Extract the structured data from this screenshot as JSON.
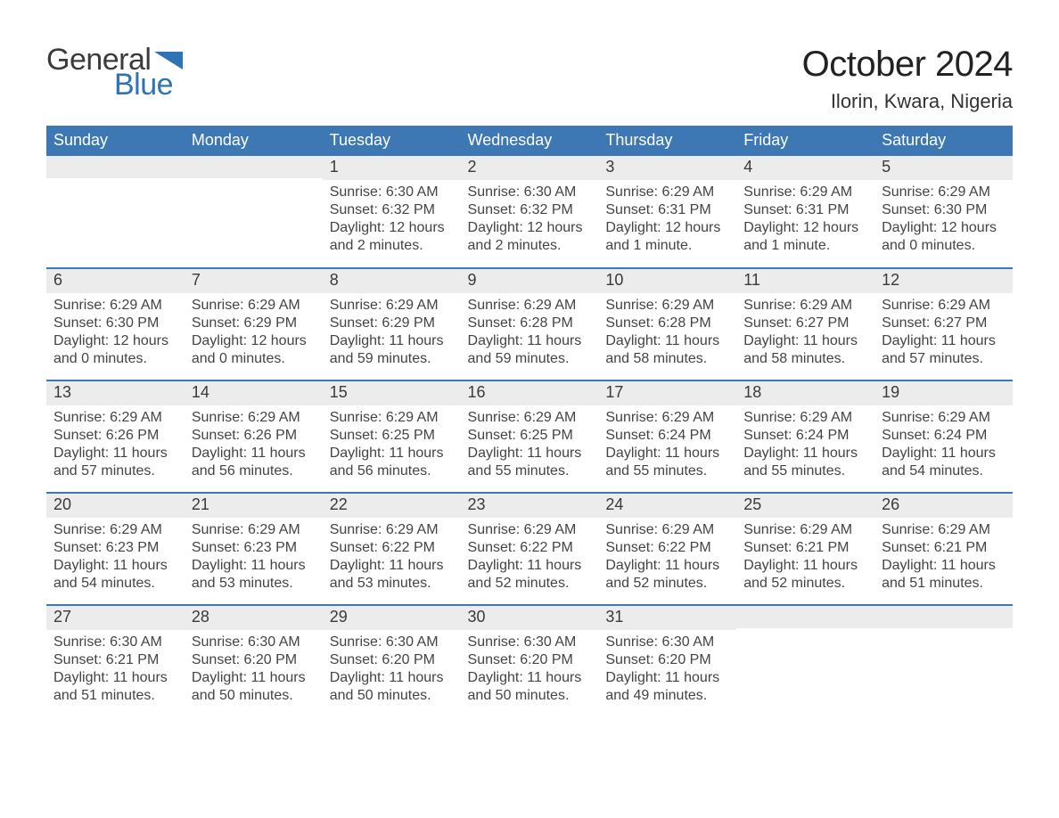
{
  "logo": {
    "word1": "General",
    "word2": "Blue"
  },
  "title": "October 2024",
  "location": "Ilorin, Kwara, Nigeria",
  "weekdays": [
    "Sunday",
    "Monday",
    "Tuesday",
    "Wednesday",
    "Thursday",
    "Friday",
    "Saturday"
  ],
  "labels": {
    "sunrise": "Sunrise:",
    "sunset": "Sunset:",
    "daylight": "Daylight:"
  },
  "colors": {
    "header_blue": "#3d78b4",
    "logo_blue": "#2f73b6",
    "row_grey": "#ececec",
    "rule_blue": "#3d78b4",
    "text": "#333333",
    "background": "#ffffff"
  },
  "fonts": {
    "family": "Arial",
    "title_pt": 40,
    "location_pt": 22,
    "weekday_pt": 18,
    "daynum_pt": 18,
    "body_pt": 16
  },
  "weeks": [
    [
      {
        "blank": true
      },
      {
        "blank": true
      },
      {
        "date": 1,
        "sunrise": "6:30 AM",
        "sunset": "6:32 PM",
        "daylight": "12 hours and 2 minutes."
      },
      {
        "date": 2,
        "sunrise": "6:30 AM",
        "sunset": "6:32 PM",
        "daylight": "12 hours and 2 minutes."
      },
      {
        "date": 3,
        "sunrise": "6:29 AM",
        "sunset": "6:31 PM",
        "daylight": "12 hours and 1 minute."
      },
      {
        "date": 4,
        "sunrise": "6:29 AM",
        "sunset": "6:31 PM",
        "daylight": "12 hours and 1 minute."
      },
      {
        "date": 5,
        "sunrise": "6:29 AM",
        "sunset": "6:30 PM",
        "daylight": "12 hours and 0 minutes."
      }
    ],
    [
      {
        "date": 6,
        "sunrise": "6:29 AM",
        "sunset": "6:30 PM",
        "daylight": "12 hours and 0 minutes."
      },
      {
        "date": 7,
        "sunrise": "6:29 AM",
        "sunset": "6:29 PM",
        "daylight": "12 hours and 0 minutes."
      },
      {
        "date": 8,
        "sunrise": "6:29 AM",
        "sunset": "6:29 PM",
        "daylight": "11 hours and 59 minutes."
      },
      {
        "date": 9,
        "sunrise": "6:29 AM",
        "sunset": "6:28 PM",
        "daylight": "11 hours and 59 minutes."
      },
      {
        "date": 10,
        "sunrise": "6:29 AM",
        "sunset": "6:28 PM",
        "daylight": "11 hours and 58 minutes."
      },
      {
        "date": 11,
        "sunrise": "6:29 AM",
        "sunset": "6:27 PM",
        "daylight": "11 hours and 58 minutes."
      },
      {
        "date": 12,
        "sunrise": "6:29 AM",
        "sunset": "6:27 PM",
        "daylight": "11 hours and 57 minutes."
      }
    ],
    [
      {
        "date": 13,
        "sunrise": "6:29 AM",
        "sunset": "6:26 PM",
        "daylight": "11 hours and 57 minutes."
      },
      {
        "date": 14,
        "sunrise": "6:29 AM",
        "sunset": "6:26 PM",
        "daylight": "11 hours and 56 minutes."
      },
      {
        "date": 15,
        "sunrise": "6:29 AM",
        "sunset": "6:25 PM",
        "daylight": "11 hours and 56 minutes."
      },
      {
        "date": 16,
        "sunrise": "6:29 AM",
        "sunset": "6:25 PM",
        "daylight": "11 hours and 55 minutes."
      },
      {
        "date": 17,
        "sunrise": "6:29 AM",
        "sunset": "6:24 PM",
        "daylight": "11 hours and 55 minutes."
      },
      {
        "date": 18,
        "sunrise": "6:29 AM",
        "sunset": "6:24 PM",
        "daylight": "11 hours and 55 minutes."
      },
      {
        "date": 19,
        "sunrise": "6:29 AM",
        "sunset": "6:24 PM",
        "daylight": "11 hours and 54 minutes."
      }
    ],
    [
      {
        "date": 20,
        "sunrise": "6:29 AM",
        "sunset": "6:23 PM",
        "daylight": "11 hours and 54 minutes."
      },
      {
        "date": 21,
        "sunrise": "6:29 AM",
        "sunset": "6:23 PM",
        "daylight": "11 hours and 53 minutes."
      },
      {
        "date": 22,
        "sunrise": "6:29 AM",
        "sunset": "6:22 PM",
        "daylight": "11 hours and 53 minutes."
      },
      {
        "date": 23,
        "sunrise": "6:29 AM",
        "sunset": "6:22 PM",
        "daylight": "11 hours and 52 minutes."
      },
      {
        "date": 24,
        "sunrise": "6:29 AM",
        "sunset": "6:22 PM",
        "daylight": "11 hours and 52 minutes."
      },
      {
        "date": 25,
        "sunrise": "6:29 AM",
        "sunset": "6:21 PM",
        "daylight": "11 hours and 52 minutes."
      },
      {
        "date": 26,
        "sunrise": "6:29 AM",
        "sunset": "6:21 PM",
        "daylight": "11 hours and 51 minutes."
      }
    ],
    [
      {
        "date": 27,
        "sunrise": "6:30 AM",
        "sunset": "6:21 PM",
        "daylight": "11 hours and 51 minutes."
      },
      {
        "date": 28,
        "sunrise": "6:30 AM",
        "sunset": "6:20 PM",
        "daylight": "11 hours and 50 minutes."
      },
      {
        "date": 29,
        "sunrise": "6:30 AM",
        "sunset": "6:20 PM",
        "daylight": "11 hours and 50 minutes."
      },
      {
        "date": 30,
        "sunrise": "6:30 AM",
        "sunset": "6:20 PM",
        "daylight": "11 hours and 50 minutes."
      },
      {
        "date": 31,
        "sunrise": "6:30 AM",
        "sunset": "6:20 PM",
        "daylight": "11 hours and 49 minutes."
      },
      {
        "blank": true
      },
      {
        "blank": true
      }
    ]
  ]
}
